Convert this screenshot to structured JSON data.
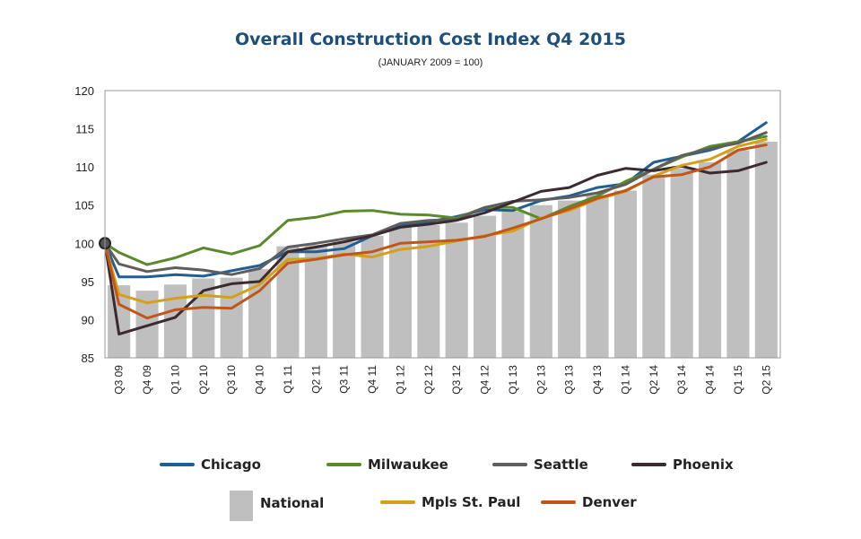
{
  "chart_data": {
    "type": "line",
    "title": "Overall Construction Cost Index Q4 2015",
    "subtitle": "(JANUARY 2009 = 100)",
    "xlabel": "",
    "ylabel": "",
    "ylim": [
      85,
      120
    ],
    "yticks": [
      85,
      90,
      95,
      100,
      105,
      110,
      115,
      120
    ],
    "grid": false,
    "categories": [
      "Q3 09",
      "Q4 09",
      "Q1 10",
      "Q2 10",
      "Q3 10",
      "Q4 10",
      "Q1 11",
      "Q2 11",
      "Q3 11",
      "Q4 11",
      "Q1 12",
      "Q2 12",
      "Q3 12",
      "Q4 12",
      "Q1 13",
      "Q2 13",
      "Q3 13",
      "Q4 13",
      "Q1 14",
      "Q2 14",
      "Q3 14",
      "Q4 14",
      "Q1 15",
      "Q2 15"
    ],
    "start_point": {
      "value": 100,
      "color": "#555555"
    },
    "bars": {
      "name": "National",
      "color": "#bfbfbf",
      "values": [
        94.5,
        93.8,
        94.6,
        95.4,
        95.5,
        96.6,
        99.6,
        99.8,
        100.2,
        101.0,
        102.1,
        102.4,
        102.7,
        103.6,
        104.2,
        105.0,
        105.6,
        106.3,
        106.9,
        109.0,
        109.8,
        110.6,
        112.2,
        113.3
      ]
    },
    "series": [
      {
        "name": "Chicago",
        "color": "#1f5f96",
        "values": [
          95.6,
          95.6,
          95.9,
          95.7,
          96.4,
          97.1,
          98.9,
          98.9,
          99.3,
          101.0,
          102.3,
          102.8,
          103.5,
          104.4,
          104.3,
          105.6,
          106.2,
          107.3,
          107.8,
          110.6,
          111.4,
          112.2,
          113.3,
          115.8
        ]
      },
      {
        "name": "Milwaukee",
        "color": "#5b8a2d",
        "values": [
          98.8,
          97.2,
          98.1,
          99.4,
          98.6,
          99.7,
          103.0,
          103.4,
          104.2,
          104.3,
          103.8,
          103.7,
          103.3,
          104.7,
          104.7,
          103.2,
          104.8,
          106.2,
          108.1,
          109.7,
          111.3,
          112.7,
          113.3,
          114.0
        ]
      },
      {
        "name": "Seattle",
        "color": "#5e5e5e",
        "values": [
          97.3,
          96.3,
          96.8,
          96.5,
          95.9,
          96.7,
          99.5,
          100.0,
          100.6,
          101.1,
          102.6,
          103.0,
          103.1,
          104.7,
          105.5,
          105.7,
          106.0,
          106.6,
          107.7,
          109.7,
          111.5,
          112.4,
          113.1,
          114.5
        ]
      },
      {
        "name": "Phoenix",
        "color": "#3b2a30",
        "values": [
          88.1,
          89.2,
          90.3,
          93.8,
          94.7,
          95.0,
          98.9,
          99.5,
          100.2,
          101.0,
          102.1,
          102.5,
          103.0,
          104.0,
          105.4,
          106.8,
          107.3,
          108.9,
          109.8,
          109.5,
          110.1,
          109.2,
          109.5,
          110.6
        ]
      },
      {
        "name": "Mpls St. Paul",
        "color": "#d4a017",
        "values": [
          93.3,
          92.2,
          92.8,
          93.2,
          92.9,
          94.6,
          97.9,
          98.0,
          98.6,
          98.2,
          99.2,
          99.6,
          100.3,
          101.0,
          101.6,
          103.3,
          104.3,
          105.8,
          106.8,
          108.8,
          110.2,
          111.0,
          112.7,
          113.6
        ]
      },
      {
        "name": "Denver",
        "color": "#c0561a",
        "values": [
          92.0,
          90.2,
          91.3,
          91.6,
          91.5,
          93.8,
          97.4,
          97.9,
          98.5,
          98.9,
          100.0,
          100.2,
          100.4,
          100.9,
          102.0,
          103.2,
          104.5,
          105.9,
          106.9,
          108.7,
          109.0,
          110.0,
          112.2,
          112.9
        ]
      }
    ],
    "legend": {
      "placement": "bottom",
      "rows": [
        [
          "Chicago",
          "Milwaukee",
          "Seattle",
          "Phoenix"
        ],
        [
          "National",
          "Mpls St. Paul",
          "Denver"
        ]
      ]
    }
  }
}
